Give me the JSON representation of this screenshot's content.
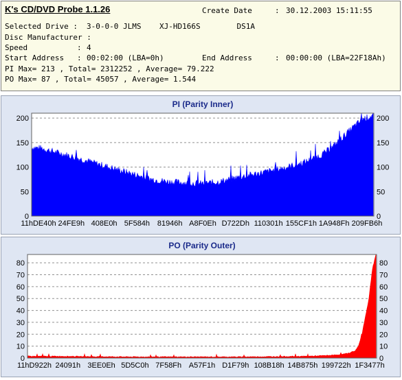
{
  "header": {
    "app_title": "K's CD/DVD Probe 1.1.26",
    "create_date_label": "Create Date",
    "create_date_value": "30.12.2003 15:11:55",
    "selected_drive_label": "Selected Drive :",
    "selected_drive_value": "3-0-0-0 JLMS    XJ-HD166S        DS1A",
    "disc_manufacturer_label": "Disc Manufacturer :",
    "speed_label": "Speed",
    "speed_value": "4",
    "start_address_label": "Start Address",
    "start_address_value": "00:02:00 (LBA=0h)",
    "end_address_label": "End Address",
    "end_address_value": "00:00:00 (LBA=22F18Ah)",
    "pi_summary": "PI Max= 213 , Total= 2312252 , Average= 79.222",
    "po_summary": "PO Max= 87 , Total= 45057 , Average= 1.544"
  },
  "chart_data": [
    {
      "type": "area",
      "title": "PI (Parity Inner)",
      "color": "#0000ff",
      "background": "#ffffff",
      "grid": true,
      "ylim": [
        0,
        210
      ],
      "yticks": [
        0,
        50,
        100,
        150,
        200
      ],
      "xticks": [
        "11hDE40h",
        "24FE9h",
        "408E0h",
        "5F584h",
        "81946h",
        "A8F0Eh",
        "D722Dh",
        "110301h",
        "155CF1h",
        "1A948Fh",
        "209FB6h"
      ],
      "series": [
        {
          "x": [
            0,
            3,
            6,
            10,
            15,
            20,
            25,
            30,
            35,
            40,
            45,
            50,
            55,
            60,
            65,
            70,
            75,
            80,
            85,
            88,
            91,
            94,
            97,
            100
          ],
          "values": [
            140,
            138,
            132,
            125,
            115,
            105,
            95,
            85,
            75,
            70,
            68,
            66,
            70,
            78,
            85,
            92,
            100,
            110,
            125,
            140,
            160,
            180,
            198,
            205
          ]
        }
      ]
    },
    {
      "type": "area",
      "title": "PO (Parity Outer)",
      "color": "#ff0000",
      "background": "#ffffff",
      "grid": true,
      "ylim": [
        0,
        87
      ],
      "yticks": [
        0,
        10,
        20,
        30,
        40,
        50,
        60,
        70,
        80
      ],
      "xticks": [
        "11hD922h",
        "24091h",
        "3EE0Eh",
        "5D5C0h",
        "7F58Fh",
        "A57F1h",
        "D1F79h",
        "108B18h",
        "14B875h",
        "199722h",
        "1F3477h"
      ],
      "series": [
        {
          "x": [
            0,
            10,
            20,
            30,
            40,
            50,
            60,
            70,
            80,
            85,
            88,
            90,
            92,
            94,
            95,
            96,
            97,
            98,
            99,
            100
          ],
          "values": [
            1.5,
            1.5,
            1.2,
            1,
            1,
            1,
            1,
            1.2,
            1.5,
            2,
            2.5,
            3,
            4,
            6,
            10,
            20,
            35,
            50,
            75,
            87
          ]
        }
      ]
    }
  ]
}
